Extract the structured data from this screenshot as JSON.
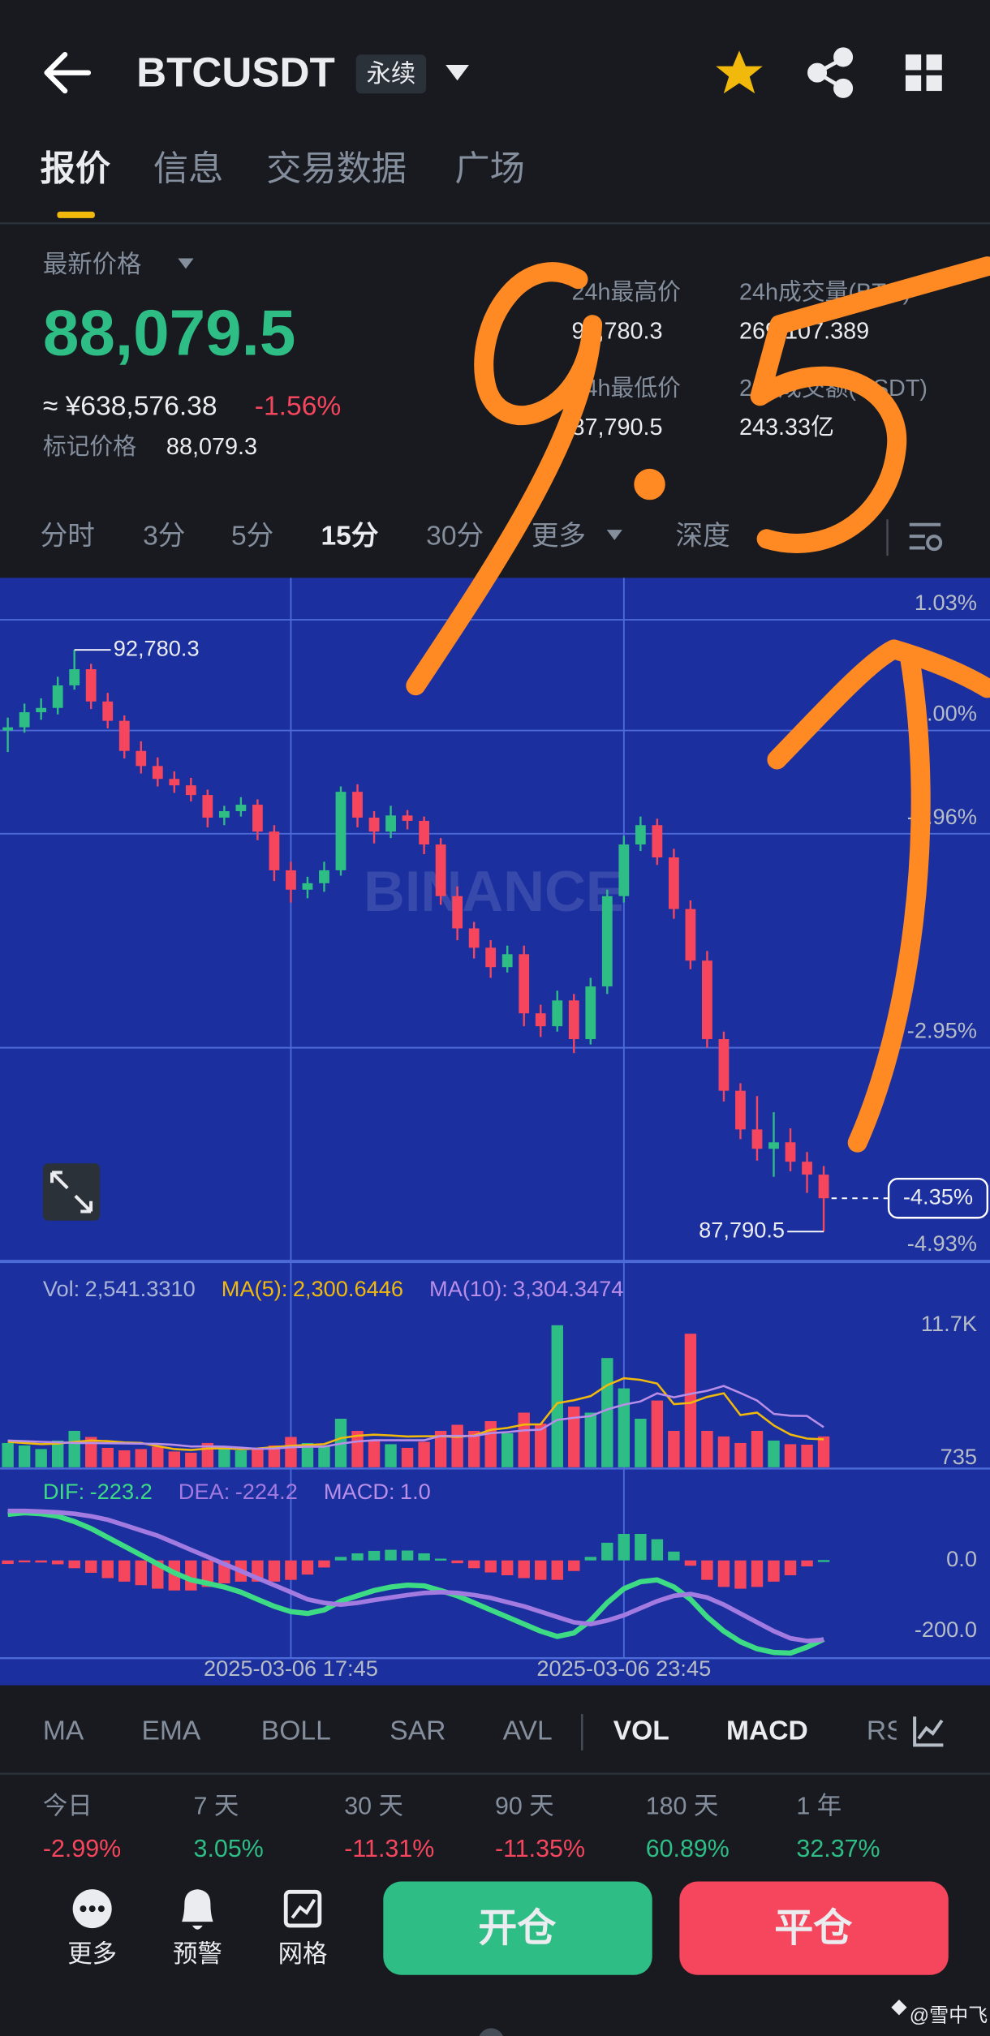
{
  "header": {
    "symbol": "BTCUSDT",
    "badge": "永续"
  },
  "tabs": [
    "报价",
    "信息",
    "交易数据",
    "广场"
  ],
  "price": {
    "label": "最新价格",
    "last": "88,079.5",
    "cny": "≈ ¥638,576.38",
    "change": "-1.56%",
    "mark_label": "标记价格",
    "mark": "88,079.3"
  },
  "stats": [
    {
      "label": "24h最高价",
      "value": "92,780.3"
    },
    {
      "label": "24h成交量(BTC)",
      "value": "269,107.389"
    },
    {
      "label": "24h最低价",
      "value": "87,790.5"
    },
    {
      "label": "24h成交额(USDT)",
      "value": "243.33亿"
    }
  ],
  "intervals": [
    "分时",
    "3分",
    "5分",
    "15分",
    "30分",
    "更多",
    "深度"
  ],
  "chart_data": {
    "type": "candlestick",
    "categories": [
      null,
      null,
      null,
      null,
      null,
      null,
      null,
      null,
      null,
      null,
      null,
      null,
      null,
      null,
      null,
      null,
      null,
      "2025-03-06 17:45",
      null,
      null,
      null,
      null,
      null,
      null,
      null,
      null,
      null,
      null,
      null,
      null,
      null,
      null,
      null,
      null,
      null,
      null,
      null,
      "2025-03-06 23:45",
      null,
      null,
      null,
      null,
      null,
      null,
      null,
      null,
      null,
      null,
      null,
      null
    ],
    "candles": [
      [
        0.0,
        0.12,
        -0.2,
        0.03
      ],
      [
        0.03,
        0.25,
        -0.02,
        0.17
      ],
      [
        0.17,
        0.3,
        0.1,
        0.21
      ],
      [
        0.21,
        0.5,
        0.15,
        0.42
      ],
      [
        0.42,
        0.75,
        0.38,
        0.57
      ],
      [
        0.57,
        0.62,
        0.2,
        0.27
      ],
      [
        0.27,
        0.35,
        0.02,
        0.09
      ],
      [
        0.09,
        0.14,
        -0.26,
        -0.19
      ],
      [
        -0.19,
        -0.1,
        -0.4,
        -0.33
      ],
      [
        -0.33,
        -0.25,
        -0.52,
        -0.45
      ],
      [
        -0.45,
        -0.38,
        -0.58,
        -0.51
      ],
      [
        -0.51,
        -0.44,
        -0.66,
        -0.6
      ],
      [
        -0.6,
        -0.55,
        -0.9,
        -0.81
      ],
      [
        -0.81,
        -0.7,
        -0.88,
        -0.75
      ],
      [
        -0.75,
        -0.62,
        -0.8,
        -0.69
      ],
      [
        -0.69,
        -0.64,
        -1.02,
        -0.94
      ],
      [
        -0.94,
        -0.88,
        -1.4,
        -1.3
      ],
      [
        -1.3,
        -1.22,
        -1.6,
        -1.48
      ],
      [
        -1.48,
        -1.36,
        -1.56,
        -1.42
      ],
      [
        -1.42,
        -1.22,
        -1.5,
        -1.3
      ],
      [
        -1.3,
        -0.52,
        -1.35,
        -0.57
      ],
      [
        -0.57,
        -0.5,
        -0.9,
        -0.81
      ],
      [
        -0.81,
        -0.75,
        -1.05,
        -0.94
      ],
      [
        -0.94,
        -0.7,
        -1.0,
        -0.79
      ],
      [
        -0.79,
        -0.74,
        -0.92,
        -0.84
      ],
      [
        -0.84,
        -0.8,
        -1.15,
        -1.06
      ],
      [
        -1.06,
        -1.0,
        -1.62,
        -1.54
      ],
      [
        -1.54,
        -1.45,
        -1.95,
        -1.84
      ],
      [
        -1.84,
        -1.78,
        -2.12,
        -2.02
      ],
      [
        -2.02,
        -1.95,
        -2.3,
        -2.2
      ],
      [
        -2.2,
        -2.0,
        -2.25,
        -2.08
      ],
      [
        -2.08,
        -2.0,
        -2.75,
        -2.63
      ],
      [
        -2.63,
        -2.55,
        -2.85,
        -2.75
      ],
      [
        -2.75,
        -2.42,
        -2.8,
        -2.51
      ],
      [
        -2.51,
        -2.45,
        -3.0,
        -2.87
      ],
      [
        -2.87,
        -2.3,
        -2.92,
        -2.38
      ],
      [
        -2.38,
        -1.48,
        -2.45,
        -1.54
      ],
      [
        -1.54,
        -0.98,
        -1.6,
        -1.06
      ],
      [
        -1.06,
        -0.8,
        -1.12,
        -0.88
      ],
      [
        -0.88,
        -0.82,
        -1.25,
        -1.18
      ],
      [
        -1.18,
        -1.1,
        -1.75,
        -1.66
      ],
      [
        -1.66,
        -1.58,
        -2.22,
        -2.14
      ],
      [
        -2.14,
        -2.05,
        -2.95,
        -2.87
      ],
      [
        -2.87,
        -2.8,
        -3.45,
        -3.35
      ],
      [
        -3.35,
        -3.28,
        -3.8,
        -3.71
      ],
      [
        -3.71,
        -3.4,
        -4.0,
        -3.89
      ],
      [
        -3.89,
        -3.55,
        -4.15,
        -3.83
      ],
      [
        -3.83,
        -3.7,
        -4.1,
        -4.01
      ],
      [
        -4.01,
        -3.92,
        -4.3,
        -4.13
      ],
      [
        -4.13,
        -4.05,
        -4.66,
        -4.35
      ]
    ],
    "up_color": "#2ebd85",
    "down_color": "#f6465d",
    "ylim": [
      -4.98,
      1.42
    ],
    "yticks": [
      {
        "value": 1.03,
        "label": "1.03%"
      },
      {
        "value": 0,
        "label": "0.00%"
      },
      {
        "value": -0.96,
        "label": "-0.96%"
      },
      {
        "value": -2.95,
        "label": "-2.95%"
      },
      {
        "value": -4.93,
        "label": "-4.93%"
      }
    ],
    "grid": true,
    "high_label": "92,780.3",
    "low_label": "87,790.5",
    "last_label": {
      "value": -4.35,
      "label": "-4.35%"
    },
    "watermark": "BINANCE",
    "volume": {
      "name": "Vol:",
      "value_label": "2,541.3310",
      "values": [
        2000,
        1800,
        1500,
        2200,
        3000,
        2500,
        1600,
        1400,
        1500,
        1700,
        1300,
        1200,
        2000,
        1600,
        1400,
        1500,
        1800,
        2500,
        2000,
        1700,
        4000,
        3000,
        2200,
        1900,
        1600,
        2100,
        3000,
        3500,
        3000,
        3800,
        2800,
        4500,
        3600,
        11700,
        5000,
        4500,
        9000,
        6500,
        4000,
        5500,
        3000,
        11000,
        3000,
        2540,
        2000,
        3000,
        2200,
        1900,
        1862.5,
        2541.331
      ],
      "ylim": [
        0,
        12300
      ],
      "yticks": [
        {
          "value": 11700,
          "label": "11.7K"
        },
        735
      ],
      "series": [
        {
          "name": "MA(5):",
          "color": "#f0b90b",
          "value_label": "2,300.6446",
          "values": [
            2100,
            2000,
            1900,
            1950,
            2100,
            2200,
            2150,
            2040,
            2000,
            1740,
            1500,
            1420,
            1540,
            1560,
            1500,
            1540,
            1660,
            1760,
            1840,
            1900,
            2400,
            2600,
            2680,
            2620,
            2540,
            2560,
            2560,
            2500,
            2620,
            3080,
            3240,
            3520,
            3540,
            5280,
            5520,
            5860,
            6760,
            7340,
            7200,
            6900,
            5200,
            5300,
            5800,
            6100,
            4300,
            4500,
            3440,
            2700,
            2360,
            2300.6446
          ]
        },
        {
          "name": "MA(10):",
          "color": "#b88ee8",
          "value_label": "3,304.3474",
          "values": [
            2200,
            2150,
            2100,
            2050,
            2000,
            2000,
            1980,
            1970,
            1950,
            1920,
            1850,
            1710,
            1720,
            1700,
            1620,
            1520,
            1540,
            1650,
            1700,
            1700,
            1950,
            2130,
            2220,
            2230,
            2220,
            2230,
            2580,
            2590,
            2580,
            2810,
            2900,
            3040,
            3100,
            3900,
            4070,
            4210,
            4760,
            5160,
            5420,
            6090,
            5760,
            6040,
            6300,
            6700,
            6120,
            5500,
            4400,
            4250,
            4230,
            3304.3474
          ]
        }
      ]
    },
    "macd": {
      "ylim": [
        -280,
        245
      ],
      "yticks": [
        {
          "value": 0,
          "label": "0.0"
        },
        {
          "value": -200,
          "label": "-200.0"
        }
      ],
      "lines": [
        {
          "name": "DIF:",
          "color": "#3ddc84",
          "values": [
            130,
            135,
            132,
            125,
            110,
            90,
            65,
            40,
            15,
            -10,
            -35,
            -55,
            -65,
            -75,
            -90,
            -110,
            -130,
            -145,
            -150,
            -140,
            -115,
            -100,
            -85,
            -75,
            -70,
            -72,
            -85,
            -100,
            -120,
            -140,
            -160,
            -180,
            -200,
            -215,
            -205,
            -170,
            -120,
            -80,
            -60,
            -55,
            -75,
            -110,
            -160,
            -200,
            -230,
            -250,
            -260,
            -262,
            -245,
            -223.2
          ]
        },
        {
          "name": "DEA:",
          "color": "#a37be0",
          "values": [
            140,
            140,
            138,
            136,
            132,
            125,
            115,
            100,
            85,
            70,
            50,
            30,
            10,
            -10,
            -30,
            -50,
            -70,
            -90,
            -110,
            -120,
            -125,
            -120,
            -112,
            -105,
            -98,
            -92,
            -90,
            -92,
            -98,
            -106,
            -118,
            -130,
            -145,
            -160,
            -175,
            -180,
            -170,
            -155,
            -135,
            -115,
            -100,
            -95,
            -105,
            -125,
            -150,
            -175,
            -200,
            -220,
            -228,
            -224.2
          ]
        }
      ],
      "histogram": {
        "name": "MACD:",
        "value_label": "1.0",
        "values": [
          -10,
          -5,
          -6,
          -11,
          -22,
          -35,
          -50,
          -60,
          -70,
          -80,
          -85,
          -85,
          -75,
          -65,
          -60,
          -60,
          -60,
          -55,
          -40,
          -20,
          10,
          20,
          27,
          30,
          28,
          20,
          5,
          -8,
          -22,
          -34,
          -42,
          -50,
          -55,
          -55,
          -30,
          10,
          50,
          75,
          75,
          60,
          25,
          -15,
          -55,
          -75,
          -80,
          -75,
          -60,
          -42,
          -17,
          1.0
        ]
      }
    }
  },
  "indicators": [
    "MA",
    "EMA",
    "BOLL",
    "SAR",
    "AVL",
    "VOL",
    "MACD",
    "RSI"
  ],
  "performance": {
    "labels": [
      "今日",
      "7 天",
      "30 天",
      "90 天",
      "180 天",
      "1 年"
    ],
    "values": [
      "-2.99%",
      "3.05%",
      "-11.31%",
      "-11.35%",
      "60.89%",
      "32.37%"
    ]
  },
  "bottom": {
    "more": "更多",
    "alert": "预警",
    "grid": "网格",
    "open": "开仓",
    "close": "平仓"
  },
  "credit": "@雪中飞"
}
